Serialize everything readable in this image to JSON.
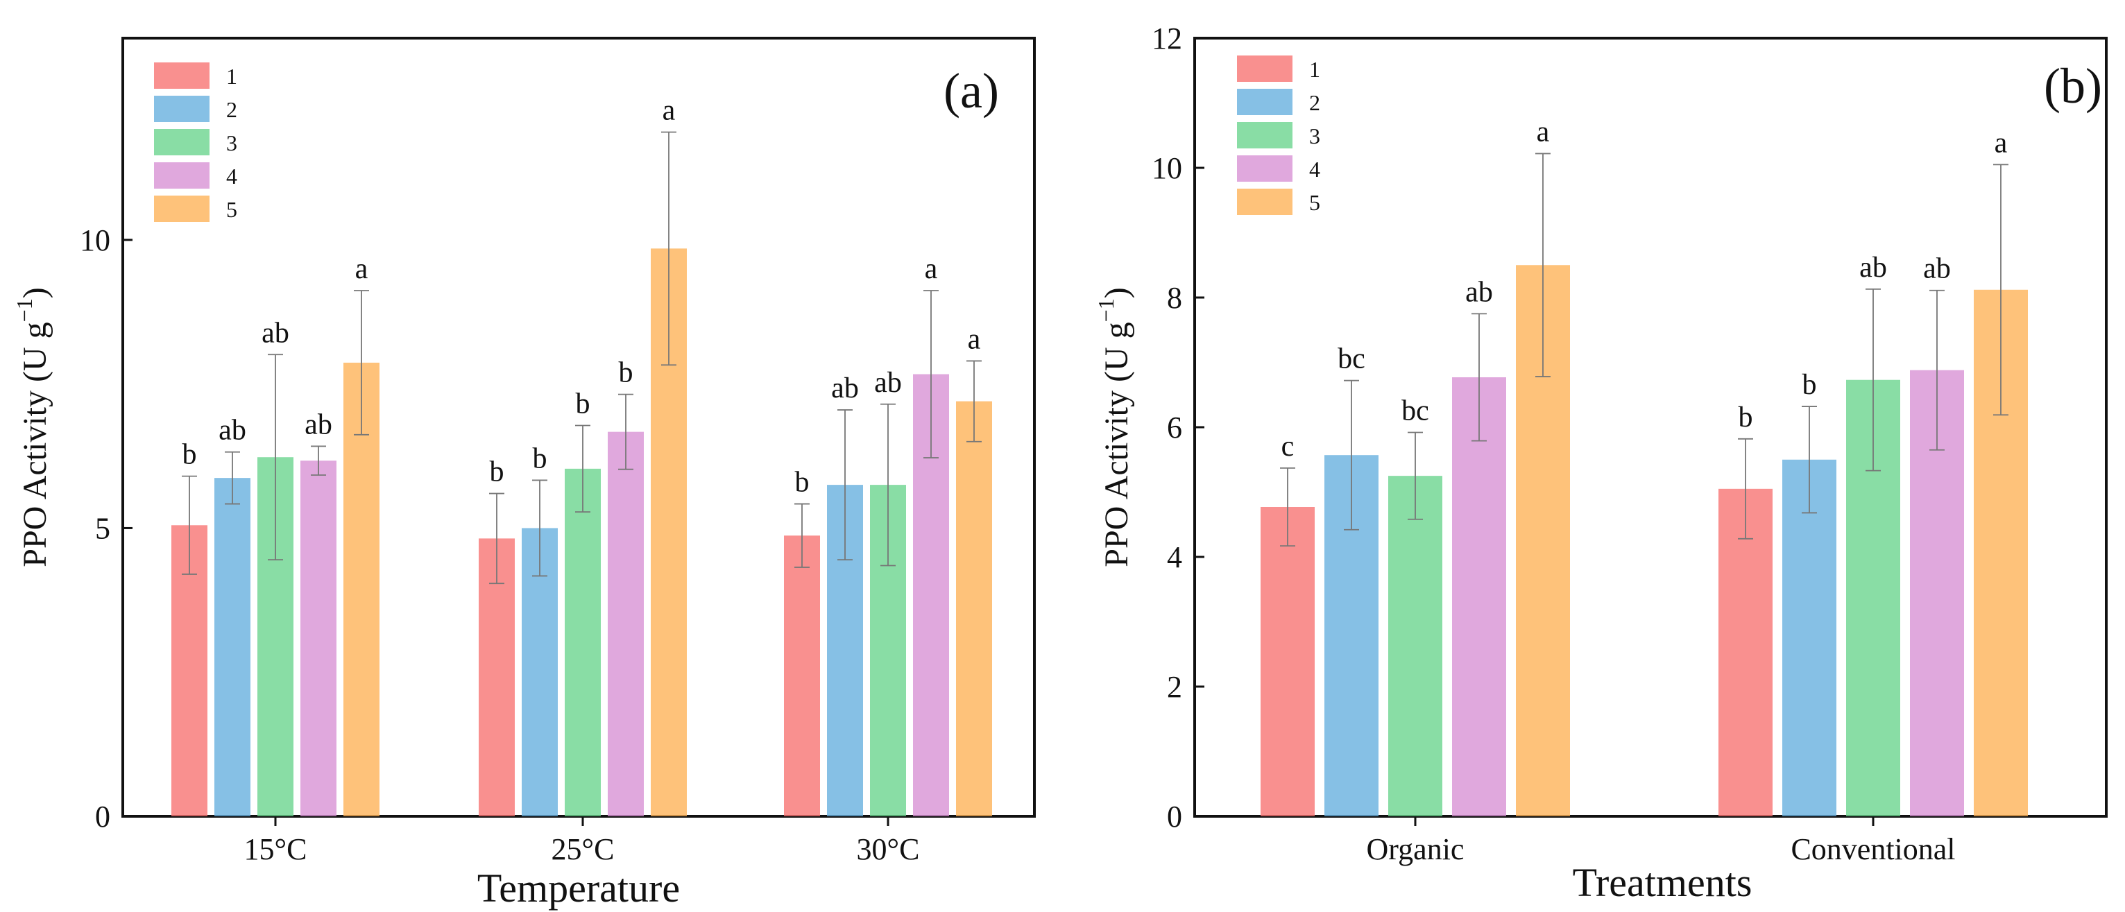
{
  "colors": {
    "s1": "#F7716F",
    "s2": "#64AEDE",
    "s3": "#68D38C",
    "s4": "#D78FD3",
    "s5": "#FEB155"
  },
  "chart_data": [
    {
      "type": "bar",
      "panel_label": "(a)",
      "title": "",
      "xlabel": "Temperature",
      "ylabel": "PPO Activity (U g",
      "ylabel_sup": "−1",
      "ylabel_close": ")",
      "ylim": [
        0,
        13.5
      ],
      "yticks": [
        0,
        5,
        10
      ],
      "ytick_labels": [
        "0",
        "5",
        "10"
      ],
      "categories": [
        "15°C",
        "25°C",
        "30°C"
      ],
      "legend_position": "top-left",
      "series": [
        {
          "name": "1",
          "values": [
            5.05,
            4.82,
            4.87
          ],
          "errors": [
            0.85,
            0.78,
            0.55
          ],
          "sig": [
            "b",
            "b",
            "b"
          ]
        },
        {
          "name": "2",
          "values": [
            5.87,
            5.0,
            5.75
          ],
          "errors": [
            0.45,
            0.83,
            1.3
          ],
          "sig": [
            "ab",
            "b",
            "ab"
          ]
        },
        {
          "name": "3",
          "values": [
            6.23,
            6.03,
            5.75
          ],
          "errors": [
            1.78,
            0.75,
            1.4
          ],
          "sig": [
            "ab",
            "b",
            "ab"
          ]
        },
        {
          "name": "4",
          "values": [
            6.17,
            6.67,
            7.67
          ],
          "errors": [
            0.25,
            0.65,
            1.45
          ],
          "sig": [
            "ab",
            "b",
            "a"
          ]
        },
        {
          "name": "5",
          "values": [
            7.87,
            9.85,
            7.2
          ],
          "errors": [
            1.25,
            2.02,
            0.7
          ],
          "sig": [
            "a",
            "a",
            "a"
          ]
        }
      ]
    },
    {
      "type": "bar",
      "panel_label": "(b)",
      "title": "",
      "xlabel": "Treatments",
      "ylabel": "PPO Activity (U g",
      "ylabel_sup": "−1",
      "ylabel_close": ")",
      "ylim": [
        0,
        12
      ],
      "yticks": [
        0,
        2,
        4,
        6,
        8,
        10,
        12
      ],
      "ytick_labels": [
        "0",
        "2",
        "4",
        "6",
        "8",
        "10",
        "12"
      ],
      "categories": [
        "Organic",
        "Conventional"
      ],
      "legend_position": "top-left",
      "series": [
        {
          "name": "1",
          "values": [
            4.77,
            5.05
          ],
          "errors": [
            0.6,
            0.77
          ],
          "sig": [
            "c",
            "b"
          ]
        },
        {
          "name": "2",
          "values": [
            5.57,
            5.5
          ],
          "errors": [
            1.15,
            0.82
          ],
          "sig": [
            "bc",
            "b"
          ]
        },
        {
          "name": "3",
          "values": [
            5.25,
            6.73
          ],
          "errors": [
            0.67,
            1.4
          ],
          "sig": [
            "bc",
            "ab"
          ]
        },
        {
          "name": "4",
          "values": [
            6.77,
            6.88
          ],
          "errors": [
            0.98,
            1.23
          ],
          "sig": [
            "ab",
            "ab"
          ]
        },
        {
          "name": "5",
          "values": [
            8.5,
            8.12
          ],
          "errors": [
            1.72,
            1.93
          ],
          "sig": [
            "a",
            "a"
          ]
        }
      ]
    }
  ]
}
